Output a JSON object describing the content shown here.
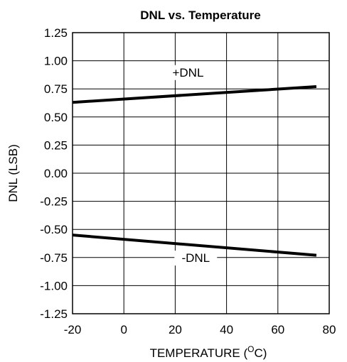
{
  "chart_data": {
    "type": "line",
    "title": "DNL vs. Temperature",
    "xlabel": "TEMPERATURE (",
    "xlabel_sup": "O",
    "xlabel_end": "C)",
    "ylabel": "DNL (LSB)",
    "xlim": [
      -20,
      80
    ],
    "ylim": [
      -1.25,
      1.25
    ],
    "xticks": [
      "-20",
      "0",
      "20",
      "40",
      "60",
      "80"
    ],
    "xtick_values": [
      -20,
      0,
      20,
      40,
      60,
      80
    ],
    "yticks": [
      "1.25",
      "1.00",
      "0.75",
      "0.50",
      "0.25",
      "0.00",
      "-0.25",
      "-0.50",
      "-0.75",
      "-1.00",
      "-1.25"
    ],
    "ytick_values": [
      1.25,
      1.0,
      0.75,
      0.5,
      0.25,
      0.0,
      -0.25,
      -0.5,
      -0.75,
      -1.0,
      -1.25
    ],
    "grid": true,
    "series": [
      {
        "name": "+DNL",
        "x": [
          -20,
          75
        ],
        "y": [
          0.63,
          0.77
        ],
        "label_at": [
          25,
          0.86
        ]
      },
      {
        "name": "-DNL",
        "x": [
          -20,
          75
        ],
        "y": [
          -0.55,
          -0.73
        ],
        "label_at": [
          28,
          -0.79
        ]
      }
    ]
  }
}
